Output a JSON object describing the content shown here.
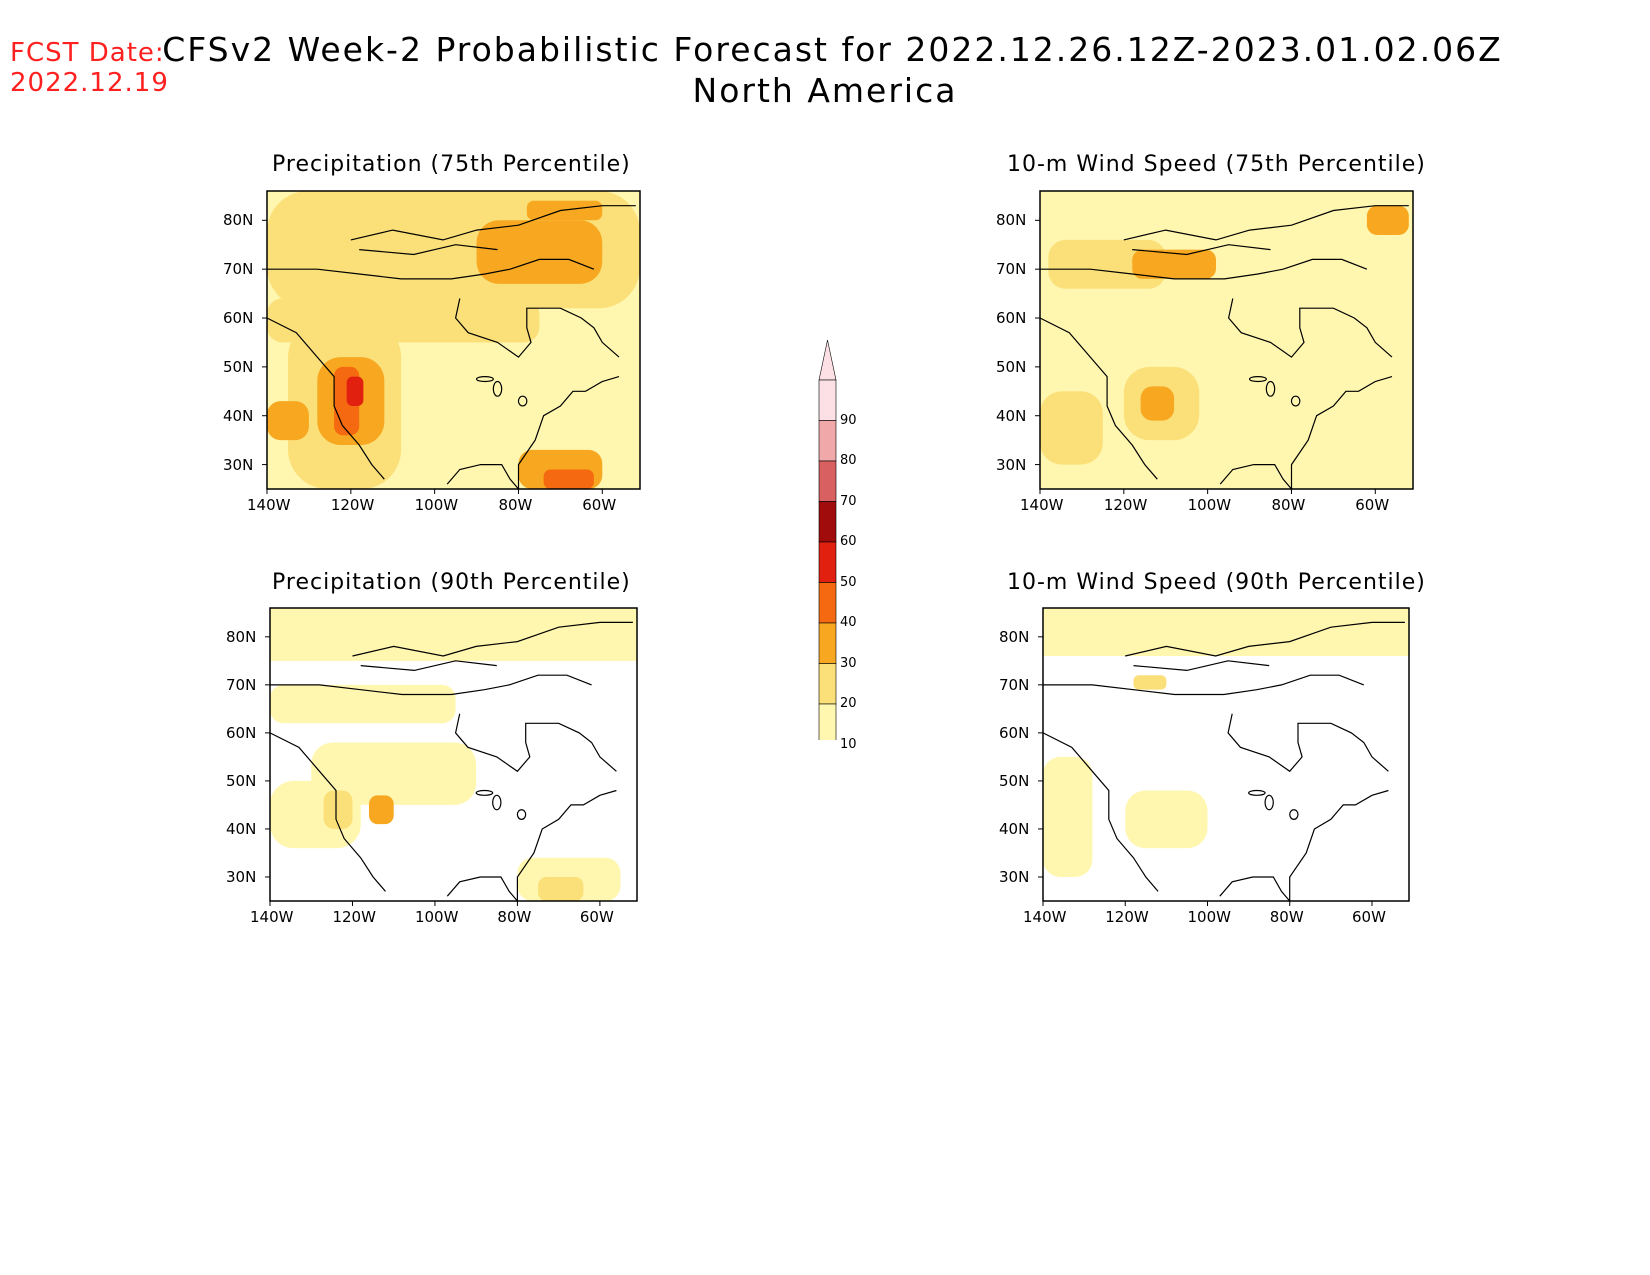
{
  "header": {
    "fcst_label": "FCST Date:",
    "fcst_date": "2022.12.19",
    "title": "CFSv2 Week-2 Probabilistic Forecast for 2022.12.26.12Z-2023.01.02.06Z",
    "subtitle": "North America"
  },
  "axes": {
    "lon_labels": [
      "140W",
      "120W",
      "100W",
      "80W",
      "60W"
    ],
    "lat_labels": [
      "80N",
      "70N",
      "60N",
      "50N",
      "40N",
      "30N"
    ]
  },
  "panels": [
    {
      "id": "precip-75",
      "title": "Precipitation (75th Percentile)",
      "intensity": "high"
    },
    {
      "id": "wind-75",
      "title": "10-m Wind Speed (75th Percentile)",
      "intensity": "medium"
    },
    {
      "id": "precip-90",
      "title": "Precipitation (90th Percentile)",
      "intensity": "low"
    },
    {
      "id": "wind-90",
      "title": "10-m Wind Speed (90th Percentile)",
      "intensity": "lowest"
    }
  ],
  "colorbar": {
    "levels": [
      "10",
      "20",
      "30",
      "40",
      "50",
      "60",
      "70",
      "80",
      "90"
    ],
    "colors": [
      "#fff7b0",
      "#fbe07a",
      "#f8a820",
      "#f56a10",
      "#e22010",
      "#a00c0c",
      "#d86060",
      "#f0a8a8",
      "#fce0e6"
    ]
  }
}
